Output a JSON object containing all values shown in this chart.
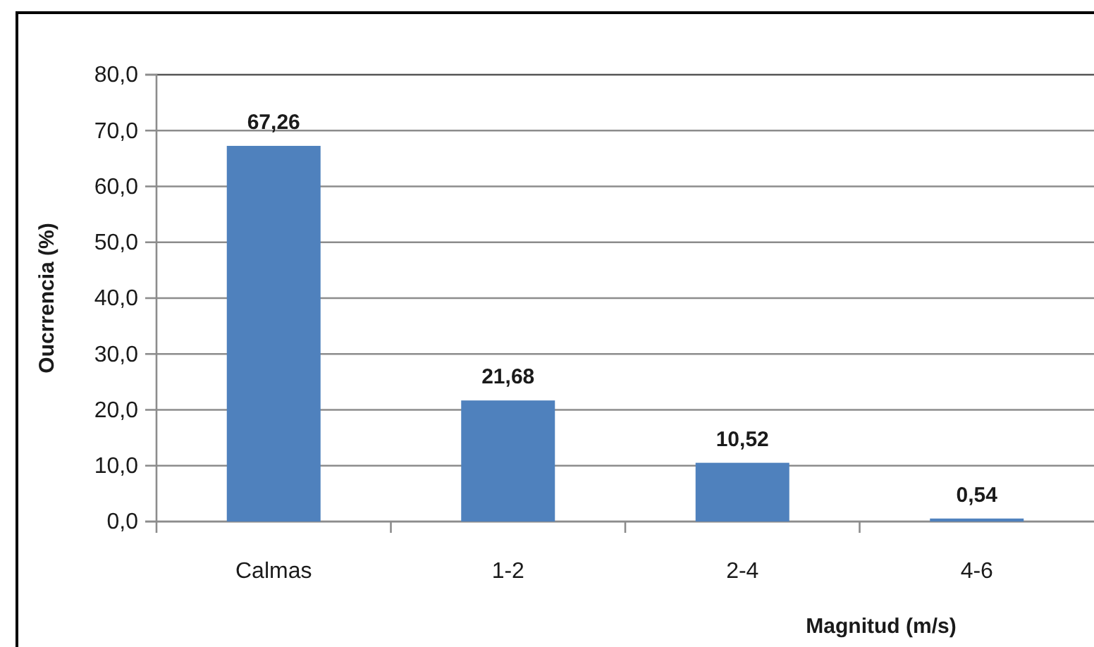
{
  "chart_data": {
    "type": "bar",
    "xlabel": "Magnitud (m/s)",
    "ylabel": "Oucrrencia (%)",
    "categories": [
      "Calmas",
      "1-2",
      "2-4",
      "4-6"
    ],
    "values": [
      67.26,
      21.68,
      10.52,
      0.54
    ],
    "color": "#4f81bd",
    "value_labels": [
      "67,26",
      "21,68",
      "10,52",
      "0,54"
    ],
    "ylim": [
      0,
      80
    ],
    "yticks": [
      {
        "value": 0,
        "label": "0,0"
      },
      {
        "value": 10,
        "label": "10,0"
      },
      {
        "value": 20,
        "label": "20,0"
      },
      {
        "value": 30,
        "label": "30,0"
      },
      {
        "value": 40,
        "label": "40,0"
      },
      {
        "value": 50,
        "label": "50,0"
      },
      {
        "value": 60,
        "label": "60,0"
      },
      {
        "value": 70,
        "label": "70,0"
      },
      {
        "value": 80,
        "label": "80,0"
      }
    ],
    "grid": "y"
  }
}
